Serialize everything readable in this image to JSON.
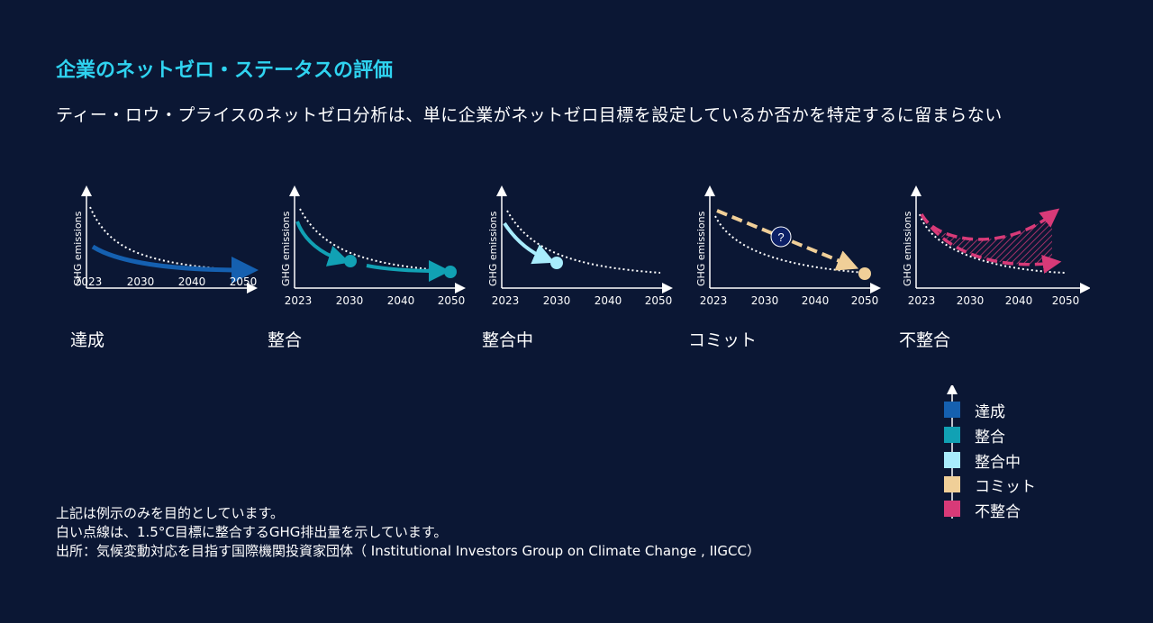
{
  "header": {
    "title": "企業のネットゼロ・ステータスの評価",
    "subtitle": "ティー・ロウ・プライスのネットゼロ分析は、単に企業がネットゼロ目標を設定しているか否かを特定するに留まらない"
  },
  "colors": {
    "background": "#0b1734",
    "title": "#2fd3f0",
    "achieved": "#1560b0",
    "aligned": "#11a1b4",
    "aligning": "#a8ecfc",
    "committed": "#f0cf98",
    "not_aligned": "#d83a78"
  },
  "panels": [
    {
      "key": "achieved",
      "label": "達成",
      "ylabel": "GHG emissions",
      "ticks": [
        "2023",
        "2030",
        "2040",
        "2050"
      ]
    },
    {
      "key": "aligned",
      "label": "整合",
      "ylabel": "GHG emissions",
      "ticks": [
        "2023",
        "2030",
        "2040",
        "2050"
      ]
    },
    {
      "key": "aligning",
      "label": "整合中",
      "ylabel": "GHG emissions",
      "ticks": [
        "2023",
        "2030",
        "2040",
        "2050"
      ]
    },
    {
      "key": "committed",
      "label": "コミット",
      "ylabel": "GHG emissions",
      "ticks": [
        "2023",
        "2030",
        "2040",
        "2050"
      ],
      "marker": "?"
    },
    {
      "key": "not_aligned",
      "label": "不整合",
      "ylabel": "GHG emissions",
      "ticks": [
        "2023",
        "2030",
        "2040",
        "2050"
      ]
    }
  ],
  "legend": {
    "items": [
      {
        "label": "達成",
        "color": "#1560b0"
      },
      {
        "label": "整合",
        "color": "#11a1b4"
      },
      {
        "label": "整合中",
        "color": "#a8ecfc"
      },
      {
        "label": "コミット",
        "color": "#f0cf98"
      },
      {
        "label": "不整合",
        "color": "#d83a78"
      }
    ]
  },
  "notes": [
    "上記は例示のみを目的としています。",
    "白い点線は、1.5°C目標に整合するGHG排出量を示しています。",
    "出所：気候変動対応を目指す国際機関投資家団体（ Institutional Investors Group on Climate Change , IIGCC）"
  ]
}
